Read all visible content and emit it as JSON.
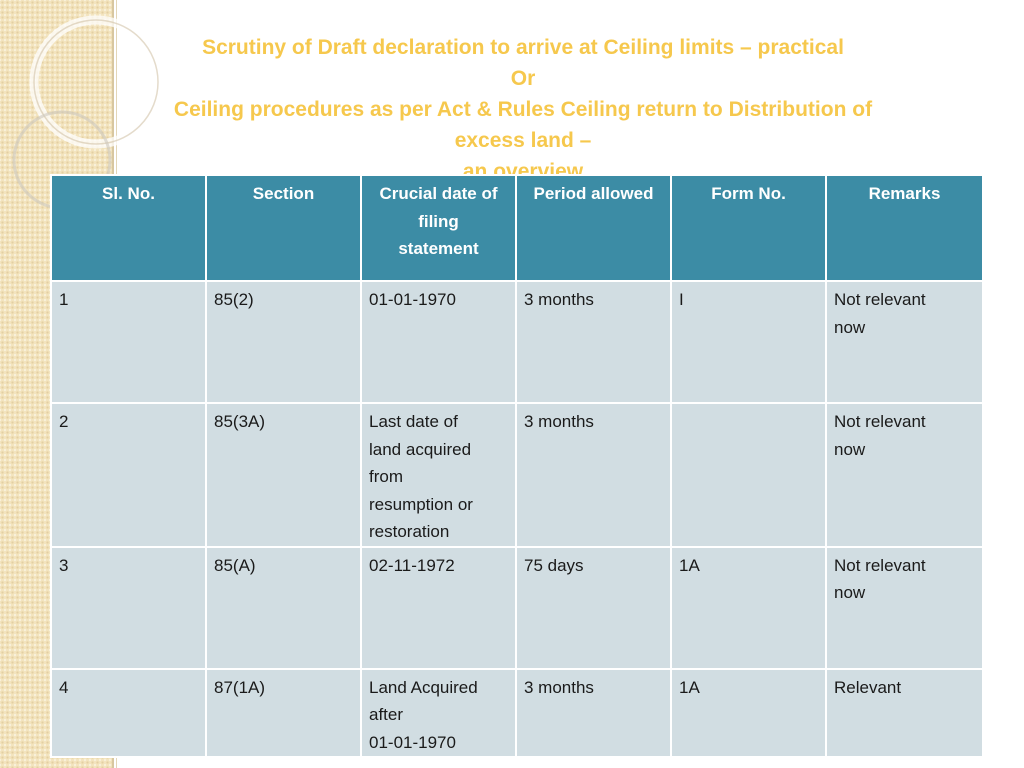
{
  "title": {
    "line1": "Scrutiny of Draft declaration to arrive at Ceiling limits – practical",
    "line2": "Or",
    "line3": "Ceiling procedures as per Act & Rules Ceiling return to Distribution of",
    "line4": "excess land –",
    "line5": "an overview"
  },
  "table": {
    "headers": [
      "Sl. No.",
      "Section",
      "Crucial date of\nfiling\nstatement",
      "Period allowed",
      "Form No.",
      "Remarks"
    ],
    "rows": [
      {
        "sl": "1",
        "section": "85(2)",
        "date": "01-01-1970",
        "period": "3 months",
        "form": "I",
        "remarks": "Not relevant\nnow"
      },
      {
        "sl": "2",
        "section": "85(3A)",
        "date": "Last  date of\nland acquired\nfrom\nresumption or\nrestoration",
        "period": "3 months",
        "form": "",
        "remarks": "Not relevant\nnow"
      },
      {
        "sl": "3",
        "section": "85(A)",
        "date": "02-11-1972",
        "period": "75 days",
        "form": "1A",
        "remarks": "Not relevant\nnow"
      },
      {
        "sl": "4",
        "section": "87(1A)",
        "date": "Land Acquired\nafter\n01-01-1970",
        "period": "3 months",
        "form": "1A",
        "remarks": "Relevant"
      }
    ]
  },
  "colors": {
    "title": "#f6c84d",
    "header_bg": "#3c8ca5",
    "cell_bg": "#d1dde2",
    "side_band": "#f3e4be"
  }
}
